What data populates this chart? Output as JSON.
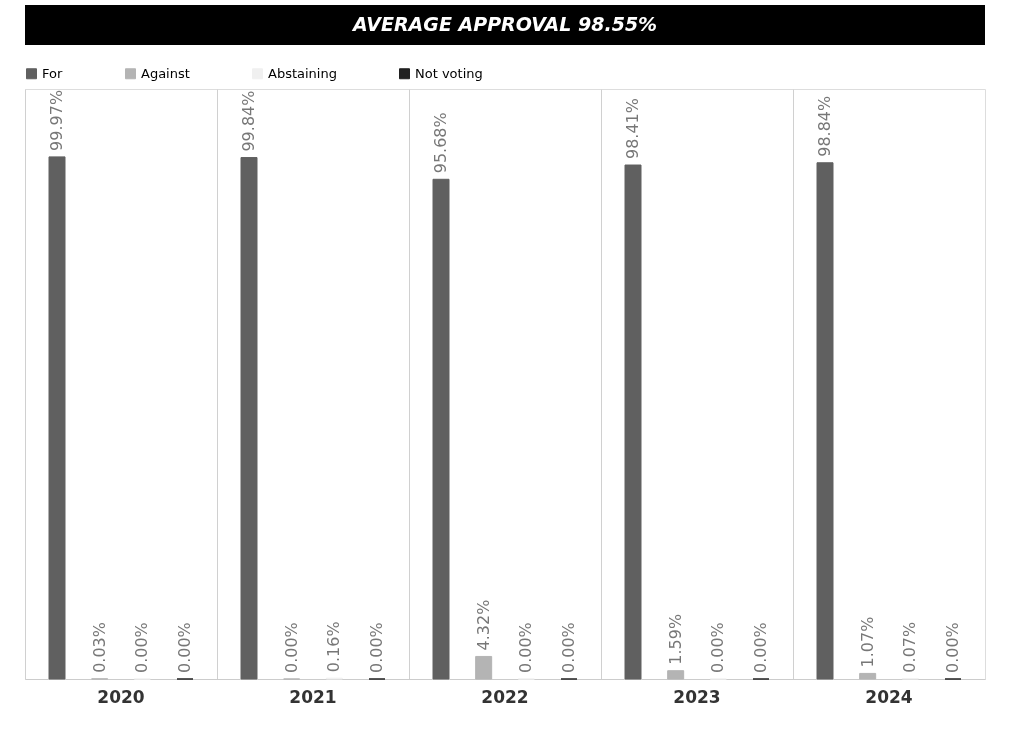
{
  "chart_data": {
    "type": "bar",
    "title": "AVERAGE APPROVAL 98.55%",
    "categories": [
      "2020",
      "2021",
      "2022",
      "2023",
      "2024"
    ],
    "series": [
      {
        "name": "For",
        "color": "#606060",
        "values": [
          99.97,
          99.84,
          95.68,
          98.41,
          98.84
        ],
        "value_labels": [
          "99.97%",
          "99.84%",
          "95.68%",
          "98.41%",
          "98.84%"
        ]
      },
      {
        "name": "Against",
        "color": "#b4b4b4",
        "values": [
          0.03,
          0.0,
          4.32,
          1.59,
          1.07
        ],
        "value_labels": [
          "0.03%",
          "0.00%",
          "4.32%",
          "1.59%",
          "1.07%"
        ]
      },
      {
        "name": "Abstaining",
        "color": "#f0f0f0",
        "values": [
          0.0,
          0.16,
          0.0,
          0.0,
          0.07
        ],
        "value_labels": [
          "0.00%",
          "0.16%",
          "0.00%",
          "0.00%",
          "0.07%"
        ]
      },
      {
        "name": "Not voting",
        "color": "#202020",
        "values": [
          0.0,
          0.0,
          0.0,
          0.0,
          0.0
        ],
        "value_labels": [
          "0.00%",
          "0.00%",
          "0.00%",
          "0.00%",
          "0.00%"
        ]
      }
    ],
    "grid": "x",
    "legend": "top"
  }
}
